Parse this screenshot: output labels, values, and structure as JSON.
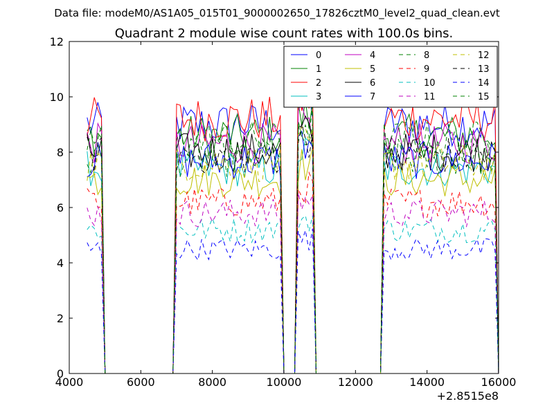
{
  "figure": {
    "suptitle": "Data file: modeM0/AS1A05_015T01_9000002650_17826cztM0_level2_quad_clean.evt"
  },
  "chart_data": {
    "type": "line",
    "title": "Quadrant 2 module wise count rates with 100.0s bins.",
    "xlabel": "",
    "ylabel": "",
    "x_offset_label": "+2.8515e8",
    "xlim": [
      4000,
      16000
    ],
    "ylim": [
      0,
      12
    ],
    "xticks": [
      4000,
      6000,
      8000,
      10000,
      12000,
      14000,
      16000
    ],
    "yticks": [
      0,
      2,
      4,
      6,
      8,
      10,
      12
    ],
    "grid": false,
    "legend_position": "top-right",
    "legend_columns": 4,
    "bin_seconds": 100,
    "segments": [
      {
        "start": 4500,
        "end": 5000
      },
      {
        "start": 7000,
        "end": 10000
      },
      {
        "start": 10400,
        "end": 10900
      },
      {
        "start": 12800,
        "end": 16000
      }
    ],
    "series": [
      {
        "name": "0",
        "color": "#0000ff",
        "style": "solid",
        "level": 9.0
      },
      {
        "name": "1",
        "color": "#008000",
        "style": "solid",
        "level": 8.6
      },
      {
        "name": "2",
        "color": "#ff0000",
        "style": "solid",
        "level": 9.2
      },
      {
        "name": "3",
        "color": "#00bfbf",
        "style": "solid",
        "level": 7.4
      },
      {
        "name": "4",
        "color": "#bf00bf",
        "style": "solid",
        "level": 8.3
      },
      {
        "name": "5",
        "color": "#bfbf00",
        "style": "solid",
        "level": 7.0
      },
      {
        "name": "6",
        "color": "#000000",
        "style": "solid",
        "level": 8.0
      },
      {
        "name": "7",
        "color": "#0000ff",
        "style": "solid",
        "level": 7.7
      },
      {
        "name": "8",
        "color": "#008000",
        "style": "dashed",
        "level": 7.8
      },
      {
        "name": "9",
        "color": "#ff0000",
        "style": "dashed",
        "level": 6.2
      },
      {
        "name": "10",
        "color": "#00bfbf",
        "style": "dashed",
        "level": 5.2
      },
      {
        "name": "11",
        "color": "#bf00bf",
        "style": "dashed",
        "level": 5.8
      },
      {
        "name": "12",
        "color": "#bfbf00",
        "style": "dashed",
        "level": 7.6
      },
      {
        "name": "13",
        "color": "#000000",
        "style": "dashed",
        "level": 7.9
      },
      {
        "name": "14",
        "color": "#0000ff",
        "style": "dashed",
        "level": 4.5
      },
      {
        "name": "15",
        "color": "#008000",
        "style": "dashed",
        "level": 8.4
      }
    ]
  }
}
